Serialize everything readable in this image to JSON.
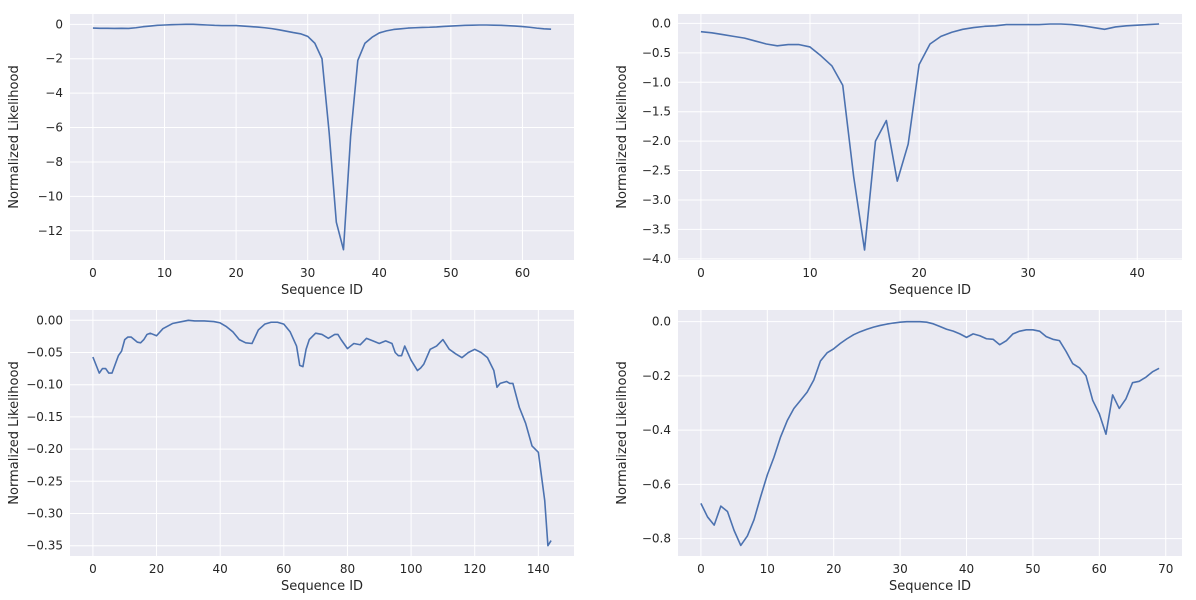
{
  "figure": {
    "background": "#ffffff",
    "panel_background": "#eaeaf2",
    "grid_color": "#ffffff",
    "line_color": "#4c72b0"
  },
  "chart_data": [
    {
      "type": "line",
      "xlabel": "Sequence ID",
      "ylabel": "Normalized Likelihood",
      "xlim": [
        -3.2,
        67.2
      ],
      "ylim": [
        -13.7,
        0.6
      ],
      "xticks": [
        0,
        10,
        20,
        30,
        40,
        50,
        60
      ],
      "yticks": [
        0,
        -2,
        -4,
        -6,
        -8,
        -10,
        -12
      ],
      "tick_labels_x": [
        "0",
        "10",
        "20",
        "30",
        "40",
        "50",
        "60"
      ],
      "tick_labels_y": [
        "0",
        "−2",
        "−4",
        "−6",
        "−8",
        "−10",
        "−12"
      ],
      "grid": true,
      "series": [
        {
          "x": [
            0,
            1,
            2,
            3,
            4,
            5,
            6,
            7,
            8,
            9,
            10,
            11,
            12,
            13,
            14,
            15,
            16,
            17,
            18,
            19,
            20,
            21,
            22,
            23,
            24,
            25,
            26,
            27,
            28,
            29,
            30,
            31,
            32,
            33,
            34,
            35,
            36,
            37,
            38,
            39,
            40,
            41,
            42,
            43,
            44,
            45,
            46,
            47,
            48,
            49,
            50,
            51,
            52,
            53,
            54,
            55,
            56,
            57,
            58,
            59,
            60,
            61,
            62,
            63,
            64
          ],
          "y": [
            -0.22,
            -0.23,
            -0.23,
            -0.24,
            -0.23,
            -0.24,
            -0.2,
            -0.14,
            -0.1,
            -0.06,
            -0.04,
            -0.02,
            -0.01,
            0.0,
            0.0,
            -0.02,
            -0.04,
            -0.06,
            -0.07,
            -0.07,
            -0.07,
            -0.1,
            -0.13,
            -0.16,
            -0.2,
            -0.25,
            -0.32,
            -0.4,
            -0.48,
            -0.55,
            -0.7,
            -1.1,
            -2.0,
            -6.3,
            -11.5,
            -13.1,
            -6.5,
            -2.1,
            -1.1,
            -0.75,
            -0.5,
            -0.38,
            -0.3,
            -0.26,
            -0.22,
            -0.2,
            -0.18,
            -0.17,
            -0.15,
            -0.12,
            -0.1,
            -0.08,
            -0.06,
            -0.05,
            -0.04,
            -0.04,
            -0.05,
            -0.06,
            -0.08,
            -0.1,
            -0.13,
            -0.17,
            -0.22,
            -0.26,
            -0.28
          ]
        }
      ]
    },
    {
      "type": "line",
      "xlabel": "Sequence ID",
      "ylabel": "Normalized Likelihood",
      "xlim": [
        -2.1,
        44.1
      ],
      "ylim": [
        -4.02,
        0.16
      ],
      "xticks": [
        0,
        10,
        20,
        30,
        40
      ],
      "yticks": [
        0.0,
        -0.5,
        -1.0,
        -1.5,
        -2.0,
        -2.5,
        -3.0,
        -3.5,
        -4.0
      ],
      "tick_labels_x": [
        "0",
        "10",
        "20",
        "30",
        "40"
      ],
      "tick_labels_y": [
        "0.0",
        "−0.5",
        "−1.0",
        "−1.5",
        "−2.0",
        "−2.5",
        "−3.0",
        "−3.5",
        "−4.0"
      ],
      "grid": true,
      "series": [
        {
          "x": [
            0,
            1,
            2,
            3,
            4,
            5,
            6,
            7,
            8,
            9,
            10,
            11,
            12,
            13,
            14,
            15,
            16,
            17,
            18,
            19,
            20,
            21,
            22,
            23,
            24,
            25,
            26,
            27,
            28,
            29,
            30,
            31,
            32,
            33,
            34,
            35,
            36,
            37,
            38,
            39,
            40,
            41,
            42
          ],
          "y": [
            -0.14,
            -0.16,
            -0.19,
            -0.22,
            -0.25,
            -0.3,
            -0.35,
            -0.38,
            -0.36,
            -0.36,
            -0.4,
            -0.55,
            -0.72,
            -1.05,
            -2.6,
            -3.85,
            -2.0,
            -1.65,
            -2.68,
            -2.05,
            -0.7,
            -0.35,
            -0.22,
            -0.15,
            -0.1,
            -0.07,
            -0.05,
            -0.04,
            -0.02,
            -0.02,
            -0.02,
            -0.02,
            -0.01,
            -0.01,
            -0.02,
            -0.04,
            -0.07,
            -0.1,
            -0.06,
            -0.04,
            -0.03,
            -0.02,
            -0.01
          ]
        }
      ]
    },
    {
      "type": "line",
      "xlabel": "Sequence ID",
      "ylabel": "Normalized Likelihood",
      "xlim": [
        -7.2,
        151.2
      ],
      "ylim": [
        -0.366,
        0.016
      ],
      "xticks": [
        0,
        20,
        40,
        60,
        80,
        100,
        120,
        140
      ],
      "yticks": [
        0.0,
        -0.05,
        -0.1,
        -0.15,
        -0.2,
        -0.25,
        -0.3,
        -0.35
      ],
      "tick_labels_x": [
        "0",
        "20",
        "40",
        "60",
        "80",
        "100",
        "120",
        "140"
      ],
      "tick_labels_y": [
        "0.00",
        "−0.05",
        "−0.10",
        "−0.15",
        "−0.20",
        "−0.25",
        "−0.30",
        "−0.35"
      ],
      "grid": true,
      "series": [
        {
          "x": [
            0,
            2,
            3,
            4,
            5,
            6,
            8,
            9,
            10,
            11,
            12,
            14,
            15,
            16,
            17,
            18,
            20,
            22,
            25,
            28,
            30,
            32,
            35,
            38,
            40,
            42,
            44,
            46,
            48,
            50,
            52,
            54,
            56,
            58,
            60,
            62,
            64,
            65,
            66,
            67,
            68,
            70,
            72,
            74,
            76,
            77,
            78,
            80,
            81,
            82,
            84,
            86,
            88,
            90,
            92,
            94,
            95,
            96,
            97,
            98,
            100,
            102,
            103,
            104,
            106,
            108,
            110,
            112,
            114,
            116,
            118,
            120,
            122,
            124,
            126,
            127,
            128,
            130,
            131,
            132,
            134,
            136,
            138,
            140,
            142,
            143,
            144
          ],
          "y": [
            -0.057,
            -0.082,
            -0.075,
            -0.075,
            -0.082,
            -0.082,
            -0.055,
            -0.048,
            -0.03,
            -0.026,
            -0.026,
            -0.034,
            -0.035,
            -0.03,
            -0.022,
            -0.02,
            -0.024,
            -0.013,
            -0.005,
            -0.002,
            0.0,
            -0.001,
            -0.001,
            -0.002,
            -0.004,
            -0.01,
            -0.018,
            -0.03,
            -0.035,
            -0.036,
            -0.015,
            -0.006,
            -0.003,
            -0.003,
            -0.006,
            -0.018,
            -0.04,
            -0.07,
            -0.072,
            -0.045,
            -0.03,
            -0.02,
            -0.022,
            -0.028,
            -0.022,
            -0.022,
            -0.03,
            -0.044,
            -0.04,
            -0.036,
            -0.038,
            -0.028,
            -0.032,
            -0.036,
            -0.032,
            -0.036,
            -0.05,
            -0.055,
            -0.055,
            -0.04,
            -0.062,
            -0.078,
            -0.074,
            -0.068,
            -0.045,
            -0.04,
            -0.03,
            -0.045,
            -0.052,
            -0.058,
            -0.05,
            -0.045,
            -0.05,
            -0.058,
            -0.078,
            -0.104,
            -0.098,
            -0.095,
            -0.098,
            -0.098,
            -0.135,
            -0.16,
            -0.195,
            -0.205,
            -0.28,
            -0.35,
            -0.342
          ]
        }
      ]
    },
    {
      "type": "line",
      "xlabel": "Sequence ID",
      "ylabel": "Normalized Likelihood",
      "xlim": [
        -3.45,
        72.45
      ],
      "ylim": [
        -0.864,
        0.043
      ],
      "xticks": [
        0,
        10,
        20,
        30,
        40,
        50,
        60,
        70
      ],
      "yticks": [
        0.0,
        -0.2,
        -0.4,
        -0.6,
        -0.8
      ],
      "tick_labels_x": [
        "0",
        "10",
        "20",
        "30",
        "40",
        "50",
        "60",
        "70"
      ],
      "tick_labels_y": [
        "0.0",
        "−0.2",
        "−0.4",
        "−0.6",
        "−0.8"
      ],
      "grid": true,
      "series": [
        {
          "x": [
            0,
            1,
            2,
            3,
            4,
            5,
            6,
            7,
            8,
            9,
            10,
            11,
            12,
            13,
            14,
            15,
            16,
            17,
            18,
            19,
            20,
            21,
            22,
            23,
            24,
            25,
            26,
            27,
            28,
            29,
            30,
            31,
            32,
            33,
            34,
            35,
            36,
            37,
            38,
            39,
            40,
            41,
            42,
            43,
            44,
            45,
            46,
            47,
            48,
            49,
            50,
            51,
            52,
            53,
            54,
            55,
            56,
            57,
            58,
            59,
            60,
            61,
            62,
            63,
            64,
            65,
            66,
            67,
            68,
            69
          ],
          "y": [
            -0.67,
            -0.72,
            -0.75,
            -0.68,
            -0.7,
            -0.77,
            -0.825,
            -0.79,
            -0.73,
            -0.645,
            -0.565,
            -0.5,
            -0.425,
            -0.365,
            -0.32,
            -0.29,
            -0.26,
            -0.215,
            -0.145,
            -0.115,
            -0.1,
            -0.08,
            -0.063,
            -0.048,
            -0.037,
            -0.028,
            -0.02,
            -0.014,
            -0.009,
            -0.005,
            -0.002,
            0.0,
            0.0,
            0.0,
            -0.002,
            -0.008,
            -0.018,
            -0.028,
            -0.035,
            -0.045,
            -0.058,
            -0.045,
            -0.052,
            -0.063,
            -0.065,
            -0.085,
            -0.07,
            -0.045,
            -0.035,
            -0.03,
            -0.03,
            -0.035,
            -0.055,
            -0.065,
            -0.07,
            -0.11,
            -0.155,
            -0.17,
            -0.2,
            -0.29,
            -0.34,
            -0.415,
            -0.27,
            -0.32,
            -0.285,
            -0.225,
            -0.22,
            -0.205,
            -0.185,
            -0.172
          ]
        }
      ]
    }
  ]
}
